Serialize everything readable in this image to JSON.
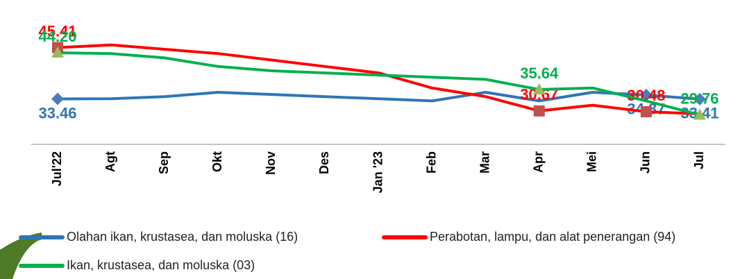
{
  "chart_data": {
    "type": "line",
    "categories": [
      "Jul'22",
      "Agt",
      "Sep",
      "Okt",
      "Nov",
      "Des",
      "Jan '23",
      "Feb",
      "Mar",
      "Apr",
      "Mei",
      "Jun",
      "Jul"
    ],
    "ylim": [
      25,
      50
    ],
    "series": [
      {
        "name": "Olahan ikan, krustasea, dan moluska (16)",
        "color": "#2e75b6",
        "marker": "diamond",
        "values": [
          33.46,
          33.5,
          34,
          35,
          34.5,
          34,
          33.5,
          33,
          35,
          33,
          35,
          34.37,
          33.41
        ],
        "value_labels": [
          "33.46",
          null,
          null,
          null,
          null,
          null,
          null,
          null,
          null,
          null,
          null,
          "34.37",
          "33.41"
        ]
      },
      {
        "name": "Perabotan, lampu, dan alat penerangan (94)",
        "color": "#ff0000",
        "marker": "square",
        "values": [
          45.41,
          46,
          45,
          44,
          42.5,
          41,
          39.5,
          36,
          34,
          30.67,
          32,
          30.48,
          30
        ],
        "value_labels": [
          "45.41",
          null,
          null,
          null,
          null,
          null,
          null,
          null,
          null,
          "30.67",
          null,
          "30.48",
          null
        ]
      },
      {
        "name": "Ikan, krustasea, dan moluska (03)",
        "color": "#00b050",
        "marker": "triangle",
        "values": [
          44.2,
          44,
          43,
          41,
          40,
          39.5,
          39,
          38.5,
          38,
          35.64,
          36,
          33,
          29.76
        ],
        "value_labels": [
          "44.20",
          null,
          null,
          null,
          null,
          null,
          null,
          null,
          null,
          "35.64",
          null,
          null,
          "29.76"
        ]
      }
    ]
  }
}
